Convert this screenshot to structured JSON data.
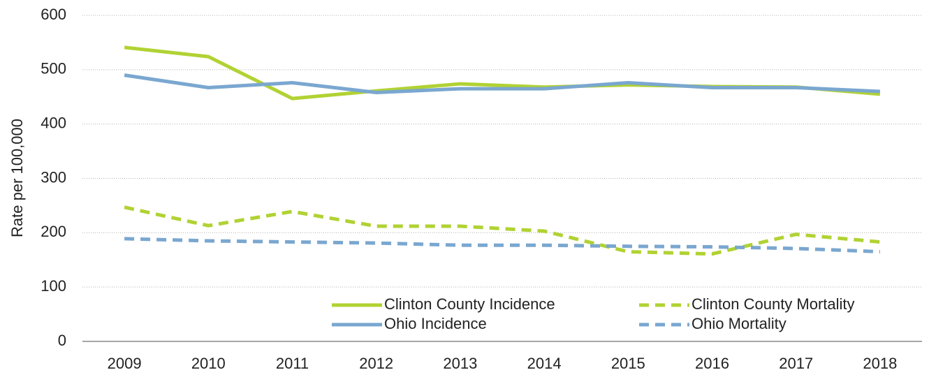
{
  "chart_data": {
    "type": "line",
    "y_label": "Rate per 100,000",
    "categories": [
      "2009",
      "2010",
      "2011",
      "2012",
      "2013",
      "2014",
      "2015",
      "2016",
      "2017",
      "2018"
    ],
    "series": [
      {
        "name": "Clinton County Incidence",
        "color": "#b1d233",
        "dashed": false,
        "values": [
          541,
          524,
          447,
          461,
          474,
          468,
          472,
          469,
          468,
          455
        ]
      },
      {
        "name": "Ohio Incidence",
        "color": "#7aa7d0",
        "dashed": false,
        "values": [
          490,
          467,
          476,
          458,
          465,
          465,
          476,
          467,
          467,
          460
        ]
      },
      {
        "name": "Clinton County Mortality",
        "color": "#b1d233",
        "dashed": true,
        "values": [
          247,
          213,
          239,
          212,
          212,
          203,
          165,
          161,
          197,
          183
        ]
      },
      {
        "name": "Ohio Mortality",
        "color": "#7aa7d0",
        "dashed": true,
        "values": [
          189,
          185,
          183,
          181,
          177,
          177,
          175,
          174,
          171,
          165
        ]
      }
    ],
    "ylim": [
      0,
      600
    ],
    "yticks": [
      0,
      100,
      200,
      300,
      400,
      500,
      600
    ],
    "grid": true,
    "legend": "lower right"
  }
}
